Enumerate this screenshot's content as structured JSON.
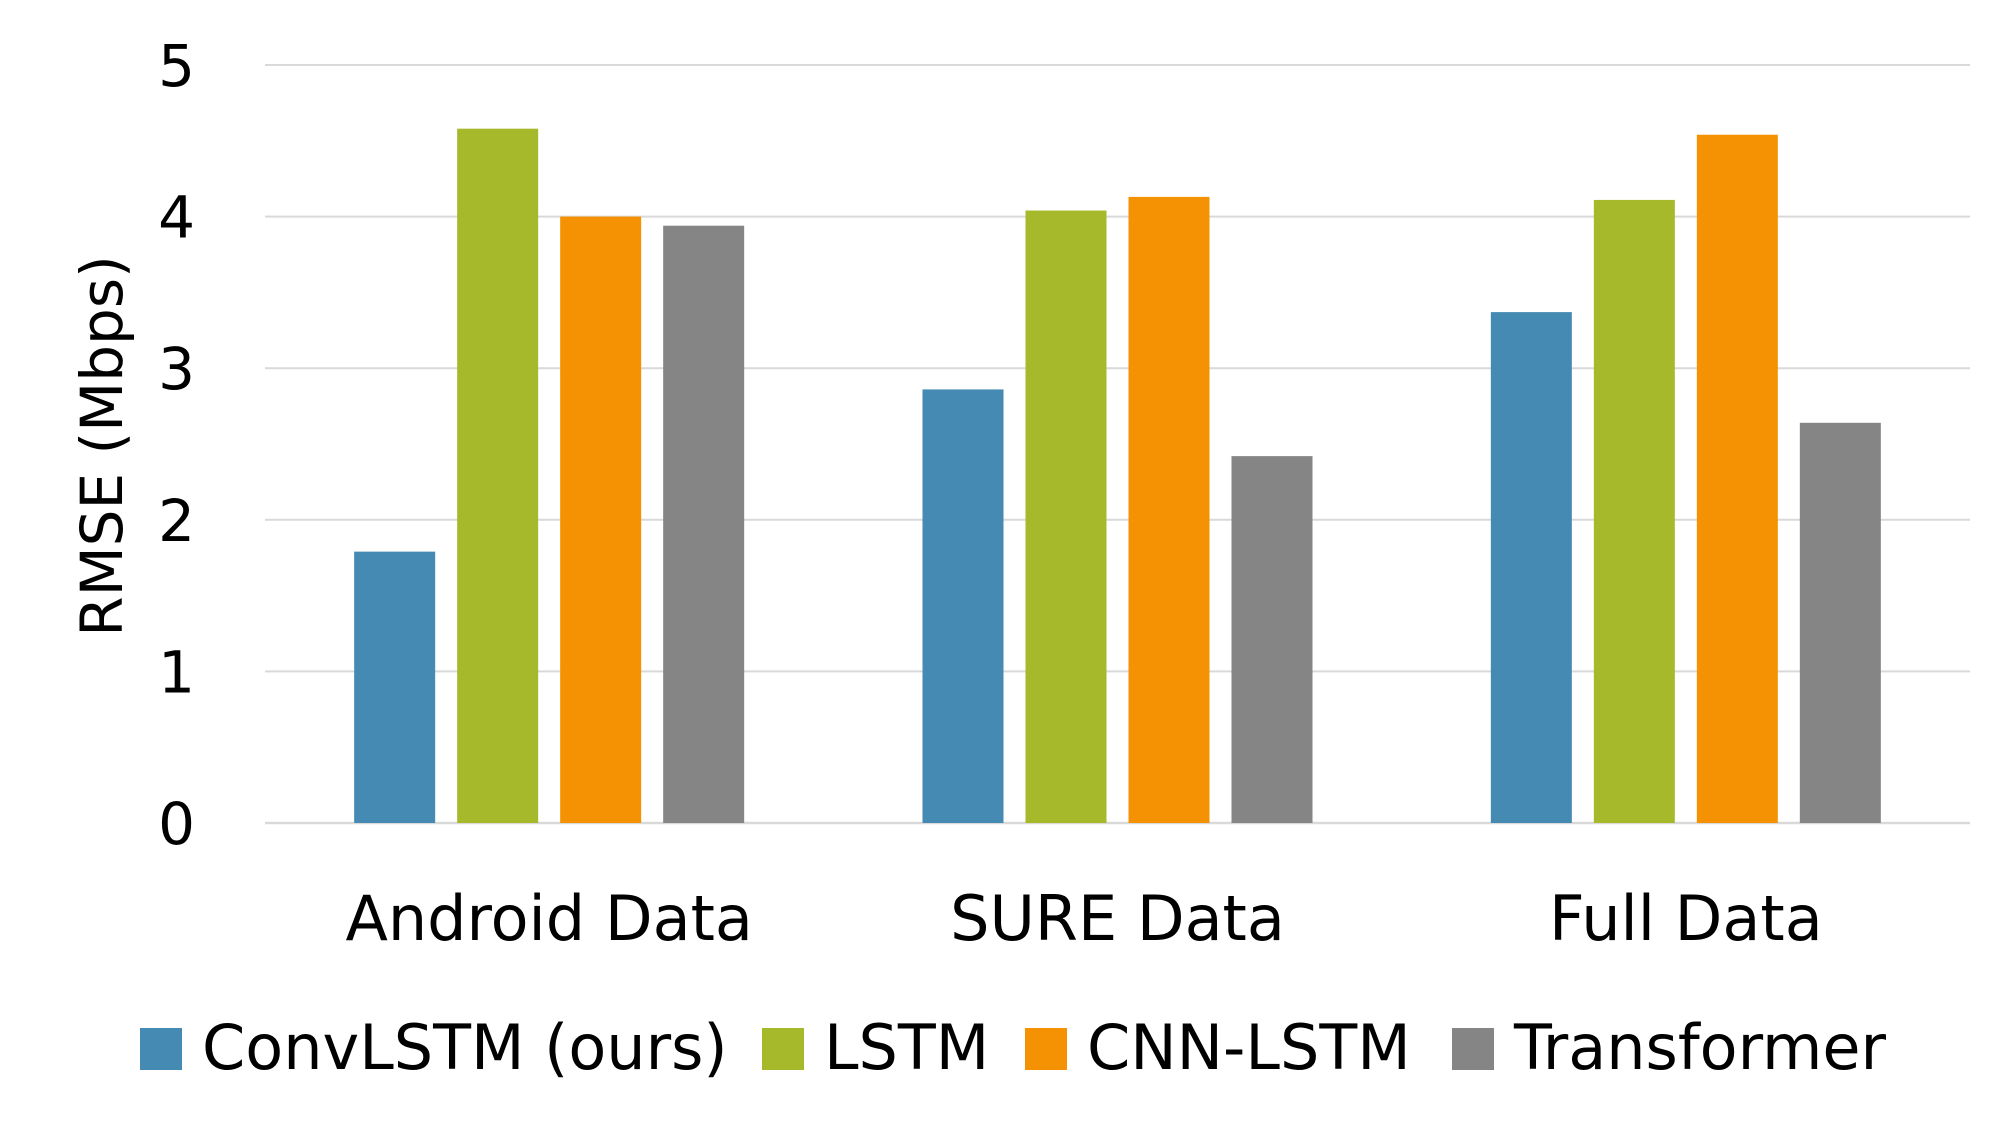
{
  "chart_data": {
    "type": "bar",
    "title": "",
    "xlabel": "",
    "ylabel": "RMSE (Mbps)",
    "ylim": [
      0,
      5
    ],
    "yticks": [
      0,
      1,
      2,
      3,
      4,
      5
    ],
    "grid": true,
    "legend_position": "bottom",
    "categories": [
      "Android Data",
      "SURE Data",
      "Full Data"
    ],
    "series": [
      {
        "name": "ConvLSTM (ours)",
        "color": "#448ab3",
        "values": [
          1.79,
          2.86,
          3.37
        ]
      },
      {
        "name": "LSTM",
        "color": "#a5b92b",
        "values": [
          4.58,
          4.04,
          4.11
        ]
      },
      {
        "name": "CNN-LSTM",
        "color": "#f49203",
        "values": [
          4.0,
          4.13,
          4.54
        ]
      },
      {
        "name": "Transformer",
        "color": "#858585",
        "values": [
          3.94,
          2.42,
          2.64
        ]
      }
    ]
  }
}
